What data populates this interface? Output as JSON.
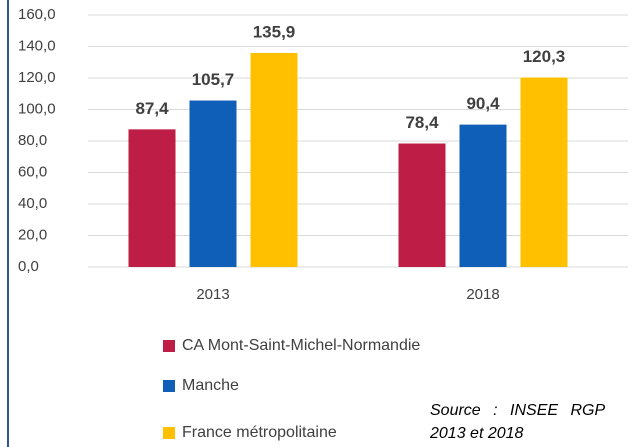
{
  "chart_data": {
    "type": "bar",
    "categories": [
      "2013",
      "2018"
    ],
    "series": [
      {
        "name": "CA Mont-Saint-Michel-Normandie",
        "color": "#be1e45",
        "values": [
          87.4,
          78.4
        ],
        "value_labels": [
          "87,4",
          "78,4"
        ]
      },
      {
        "name": "Manche",
        "color": "#0f5fb8",
        "values": [
          105.7,
          90.4
        ],
        "value_labels": [
          "105,7",
          "90,4"
        ]
      },
      {
        "name": "France métropolitaine",
        "color": "#ffc000",
        "values": [
          135.9,
          120.3
        ],
        "value_labels": [
          "135,9",
          "120,3"
        ]
      }
    ],
    "ylim": [
      0,
      160
    ],
    "yticks": [
      {
        "value": 0,
        "label": "0,0"
      },
      {
        "value": 20,
        "label": "20,0"
      },
      {
        "value": 40,
        "label": "40,0"
      },
      {
        "value": 60,
        "label": "60,0"
      },
      {
        "value": 80,
        "label": "80,0"
      },
      {
        "value": 100,
        "label": "100,0"
      },
      {
        "value": 120,
        "label": "120,0"
      },
      {
        "value": 140,
        "label": "140,0"
      },
      {
        "value": 160,
        "label": "160,0"
      }
    ],
    "grid": true,
    "source": [
      "Source : INSEE RGP",
      "2013 et 2018"
    ]
  }
}
